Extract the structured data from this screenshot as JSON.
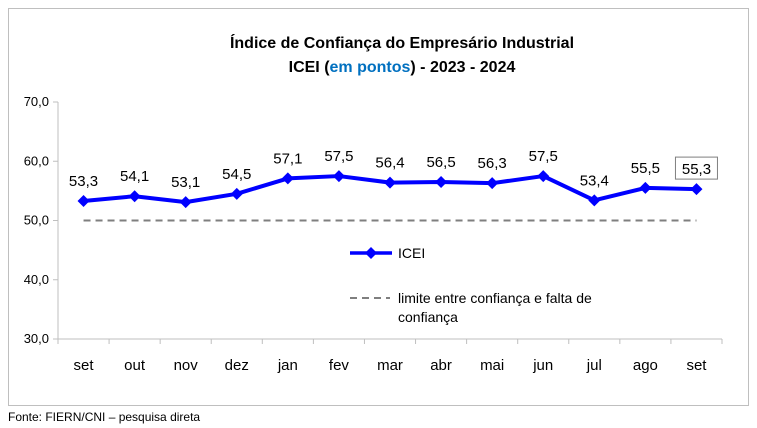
{
  "chart_data": {
    "type": "line",
    "title": "Índice de Confiança do Empresário Industrial",
    "subtitle_parts": [
      "ICEI (",
      "em pontos",
      ") - 2023 - 2024"
    ],
    "categories": [
      "set",
      "out",
      "nov",
      "dez",
      "jan",
      "fev",
      "mar",
      "abr",
      "mai",
      "jun",
      "jul",
      "ago",
      "set"
    ],
    "series": [
      {
        "name": "ICEI",
        "values": [
          53.3,
          54.1,
          53.1,
          54.5,
          57.1,
          57.5,
          56.4,
          56.5,
          56.3,
          57.5,
          53.4,
          55.5,
          55.3
        ],
        "data_labels": [
          "53,3",
          "54,1",
          "53,1",
          "54,5",
          "57,1",
          "57,5",
          "56,4",
          "56,5",
          "56,3",
          "57,5",
          "53,4",
          "55,5",
          "55,3"
        ],
        "color": "#0000ff"
      }
    ],
    "reference_line": {
      "name": "limite entre confiança e falta de confiança",
      "value": 50,
      "color": "#7f7f7f"
    },
    "legend_labels": {
      "series": "ICEI",
      "reference_line_1": "limite entre confiança e falta de",
      "reference_line_2": "confiança"
    },
    "ylim": [
      30,
      70
    ],
    "yticks": [
      30,
      40,
      50,
      60,
      70
    ],
    "ytick_labels": [
      "30,0",
      "40,0",
      "50,0",
      "60,0",
      "70,0"
    ],
    "highlighted_label_index": 12,
    "grid": false,
    "legend_position": "center"
  },
  "colors": {
    "accent": "#0000ff",
    "subtitle_accent": "#0070c0"
  },
  "source_note": "Fonte: FIERN/CNI – pesquisa direta"
}
